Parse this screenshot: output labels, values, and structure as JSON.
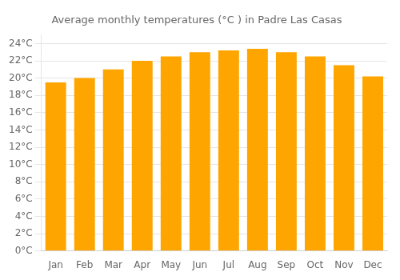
{
  "chart_data": {
    "type": "bar",
    "title": "Average monthly temperatures (°C ) in Padre Las Casas",
    "categories": [
      "Jan",
      "Feb",
      "Mar",
      "Apr",
      "May",
      "Jun",
      "Jul",
      "Aug",
      "Sep",
      "Oct",
      "Nov",
      "Dec"
    ],
    "values": [
      19.5,
      20.0,
      21.0,
      22.0,
      22.5,
      23.0,
      23.2,
      23.4,
      23.0,
      22.5,
      21.5,
      20.2
    ],
    "color": "#FFA500",
    "ylim": [
      0,
      25
    ],
    "yticks": [
      {
        "value": 0,
        "label": "0°C"
      },
      {
        "value": 2,
        "label": "2°C"
      },
      {
        "value": 4,
        "label": "4°C"
      },
      {
        "value": 6,
        "label": "6°C"
      },
      {
        "value": 8,
        "label": "8°C"
      },
      {
        "value": 10,
        "label": "10°C"
      },
      {
        "value": 12,
        "label": "12°C"
      },
      {
        "value": 14,
        "label": "14°C"
      },
      {
        "value": 16,
        "label": "16°C"
      },
      {
        "value": 18,
        "label": "18°C"
      },
      {
        "value": 20,
        "label": "20°C"
      },
      {
        "value": 22,
        "label": "22°C"
      },
      {
        "value": 24,
        "label": "24°C"
      }
    ],
    "grid": true
  }
}
